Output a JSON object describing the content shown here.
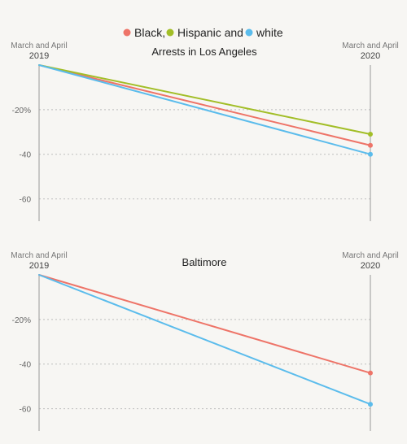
{
  "legend": [
    {
      "label": "Black,",
      "color": "#ee7468"
    },
    {
      "label": "Hispanic and",
      "color": "#a2be27"
    },
    {
      "label": "white",
      "color": "#5bbcec"
    }
  ],
  "chart_data": [
    {
      "type": "line",
      "title": "Arrests in Los Angeles",
      "x": [
        "2019",
        "2020"
      ],
      "x_period_labels": [
        "March and April",
        "March and April"
      ],
      "y_ticks": [
        "-20%",
        "-40",
        "-60"
      ],
      "ylim": [
        -70,
        0
      ],
      "series": [
        {
          "name": "Black,",
          "color": "#ee7468",
          "values": [
            0,
            -36
          ]
        },
        {
          "name": "Hispanic and",
          "color": "#a2be27",
          "values": [
            0,
            -31
          ]
        },
        {
          "name": "white",
          "color": "#5bbcec",
          "values": [
            0,
            -40
          ]
        }
      ]
    },
    {
      "type": "line",
      "title": "Baltimore",
      "x": [
        "2019",
        "2020"
      ],
      "x_period_labels": [
        "March and April",
        "March and April"
      ],
      "y_ticks": [
        "-20%",
        "-40",
        "-60"
      ],
      "ylim": [
        -70,
        0
      ],
      "series": [
        {
          "name": "Black,",
          "color": "#ee7468",
          "values": [
            0,
            -44
          ]
        },
        {
          "name": "white",
          "color": "#5bbcec",
          "values": [
            0,
            -58
          ]
        }
      ]
    }
  ]
}
